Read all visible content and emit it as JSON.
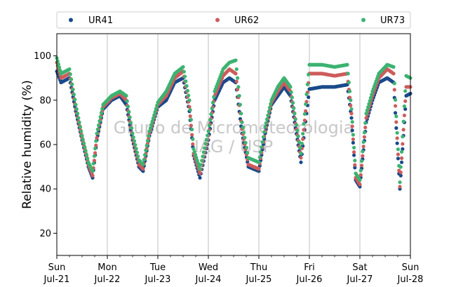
{
  "chart_data": {
    "type": "scatter",
    "title": "",
    "xlabel": "",
    "ylabel": "Relative humidity (%)",
    "ylim": [
      10,
      110
    ],
    "yticks": [
      20,
      40,
      60,
      80,
      100
    ],
    "xlim_days": [
      "Jul-21",
      "Jul-28"
    ],
    "xticks": [
      {
        "day": "Sun",
        "date": "Jul-21"
      },
      {
        "day": "Mon",
        "date": "Jul-22"
      },
      {
        "day": "Tue",
        "date": "Jul-23"
      },
      {
        "day": "Wed",
        "date": "Jul-24"
      },
      {
        "day": "Thu",
        "date": "Jul-25"
      },
      {
        "day": "Fri",
        "date": "Jul-26"
      },
      {
        "day": "Sat",
        "date": "Jul-27"
      },
      {
        "day": "Sun",
        "date": "Jul-28"
      }
    ],
    "grid": "vertical",
    "legend": "top",
    "watermark": [
      "Grupo de Micrometeorologia",
      "IAG / USP"
    ],
    "series": [
      {
        "name": "UR41",
        "color": "#1a4a8a",
        "x": [
          "Jul-21 00:00",
          "Jul-21 02:00",
          "Jul-21 06:00",
          "Jul-21 09:00",
          "Jul-21 12:00",
          "Jul-21 15:00",
          "Jul-21 17:00",
          "Jul-21 19:00",
          "Jul-21 22:00",
          "Jul-22 02:00",
          "Jul-22 06:00",
          "Jul-22 09:00",
          "Jul-22 12:00",
          "Jul-22 15:00",
          "Jul-22 17:00",
          "Jul-22 20:00",
          "Jul-23 00:00",
          "Jul-23 04:00",
          "Jul-23 08:00",
          "Jul-23 12:00",
          "Jul-23 15:00",
          "Jul-23 17:00",
          "Jul-23 20:00",
          "Jul-24 00:00",
          "Jul-24 03:00",
          "Jul-24 07:00",
          "Jul-24 10:00",
          "Jul-24 13:00",
          "Jul-24 16:00",
          "Jul-24 19:00",
          "Jul-25 00:00",
          "Jul-25 03:00",
          "Jul-25 06:00",
          "Jul-25 09:00",
          "Jul-25 12:00",
          "Jul-25 15:00",
          "Jul-25 17:00",
          "Jul-25 20:00",
          "Jul-26 00:00",
          "Jul-26 06:00",
          "Jul-26 12:00",
          "Jul-26 18:00",
          "Jul-26 20:00",
          "Jul-26 22:00",
          "Jul-27 00:00",
          "Jul-27 03:00",
          "Jul-27 06:00",
          "Jul-27 09:00",
          "Jul-27 13:00",
          "Jul-27 16:00",
          "Jul-27 19:00",
          "Jul-27 22:00",
          "Jul-28 00:00"
        ],
        "y": [
          93,
          88,
          90,
          75,
          62,
          50,
          45,
          62,
          76,
          80,
          82,
          78,
          62,
          50,
          48,
          64,
          77,
          80,
          88,
          90,
          75,
          55,
          45,
          62,
          80,
          88,
          90,
          88,
          65,
          50,
          48,
          65,
          78,
          82,
          86,
          82,
          70,
          52,
          85,
          86,
          86,
          87,
          72,
          44,
          41,
          70,
          80,
          88,
          90,
          88,
          40,
          82,
          83
        ]
      },
      {
        "name": "UR62",
        "color": "#cd5c5c",
        "x": [
          "Jul-21 00:00",
          "Jul-21 02:00",
          "Jul-21 06:00",
          "Jul-21 09:00",
          "Jul-21 12:00",
          "Jul-21 15:00",
          "Jul-21 17:00",
          "Jul-21 19:00",
          "Jul-21 22:00",
          "Jul-22 02:00",
          "Jul-22 06:00",
          "Jul-22 09:00",
          "Jul-22 12:00",
          "Jul-22 15:00",
          "Jul-22 17:00",
          "Jul-22 20:00",
          "Jul-23 00:00",
          "Jul-23 04:00",
          "Jul-23 08:00",
          "Jul-23 12:00",
          "Jul-23 15:00",
          "Jul-23 17:00",
          "Jul-23 20:00",
          "Jul-24 00:00",
          "Jul-24 03:00",
          "Jul-24 07:00",
          "Jul-24 10:00",
          "Jul-24 13:00",
          "Jul-24 16:00",
          "Jul-24 19:00",
          "Jul-25 00:00",
          "Jul-25 03:00",
          "Jul-25 06:00",
          "Jul-25 09:00",
          "Jul-25 12:00",
          "Jul-25 15:00",
          "Jul-25 17:00",
          "Jul-25 20:00",
          "Jul-26 00:00",
          "Jul-26 06:00",
          "Jul-26 12:00",
          "Jul-26 18:00",
          "Jul-26 20:00",
          "Jul-26 22:00",
          "Jul-27 00:00",
          "Jul-27 03:00",
          "Jul-27 06:00",
          "Jul-27 09:00",
          "Jul-27 13:00",
          "Jul-27 16:00",
          "Jul-27 19:00",
          "Jul-27 22:00",
          "Jul-28 00:00"
        ],
        "y": [
          97,
          90,
          92,
          76,
          63,
          51,
          46,
          63,
          77,
          81,
          83,
          80,
          63,
          51,
          49,
          65,
          78,
          82,
          90,
          93,
          77,
          56,
          47,
          64,
          82,
          91,
          94,
          92,
          67,
          51,
          49,
          66,
          79,
          84,
          88,
          84,
          72,
          54,
          92,
          92,
          91,
          92,
          74,
          45,
          42,
          72,
          82,
          90,
          94,
          92,
          41,
          86,
          86
        ]
      },
      {
        "name": "UR73",
        "color": "#3cb371",
        "x": [
          "Jul-21 00:00",
          "Jul-21 02:00",
          "Jul-21 06:00",
          "Jul-21 09:00",
          "Jul-21 12:00",
          "Jul-21 15:00",
          "Jul-21 17:00",
          "Jul-21 19:00",
          "Jul-21 22:00",
          "Jul-22 02:00",
          "Jul-22 06:00",
          "Jul-22 09:00",
          "Jul-22 12:00",
          "Jul-22 15:00",
          "Jul-22 17:00",
          "Jul-22 20:00",
          "Jul-23 00:00",
          "Jul-23 04:00",
          "Jul-23 08:00",
          "Jul-23 12:00",
          "Jul-23 15:00",
          "Jul-23 17:00",
          "Jul-23 20:00",
          "Jul-24 00:00",
          "Jul-24 03:00",
          "Jul-24 07:00",
          "Jul-24 10:00",
          "Jul-24 13:00",
          "Jul-24 16:00",
          "Jul-24 19:00",
          "Jul-25 00:00",
          "Jul-25 03:00",
          "Jul-25 06:00",
          "Jul-25 09:00",
          "Jul-25 12:00",
          "Jul-25 15:00",
          "Jul-25 17:00",
          "Jul-25 20:00",
          "Jul-26 00:00",
          "Jul-26 06:00",
          "Jul-26 12:00",
          "Jul-26 18:00",
          "Jul-26 20:00",
          "Jul-26 22:00",
          "Jul-27 00:00",
          "Jul-27 03:00",
          "Jul-27 06:00",
          "Jul-27 09:00",
          "Jul-27 13:00",
          "Jul-27 16:00",
          "Jul-27 19:00",
          "Jul-27 22:00",
          "Jul-28 00:00"
        ],
        "y": [
          99,
          92,
          94,
          78,
          64,
          52,
          48,
          65,
          78,
          82,
          84,
          82,
          65,
          53,
          51,
          66,
          79,
          84,
          92,
          95,
          80,
          58,
          49,
          66,
          84,
          94,
          97,
          98,
          70,
          54,
          52,
          68,
          80,
          86,
          90,
          86,
          74,
          56,
          96,
          96,
          95,
          96,
          76,
          47,
          44,
          74,
          84,
          92,
          96,
          95,
          43,
          91,
          90
        ]
      }
    ]
  }
}
